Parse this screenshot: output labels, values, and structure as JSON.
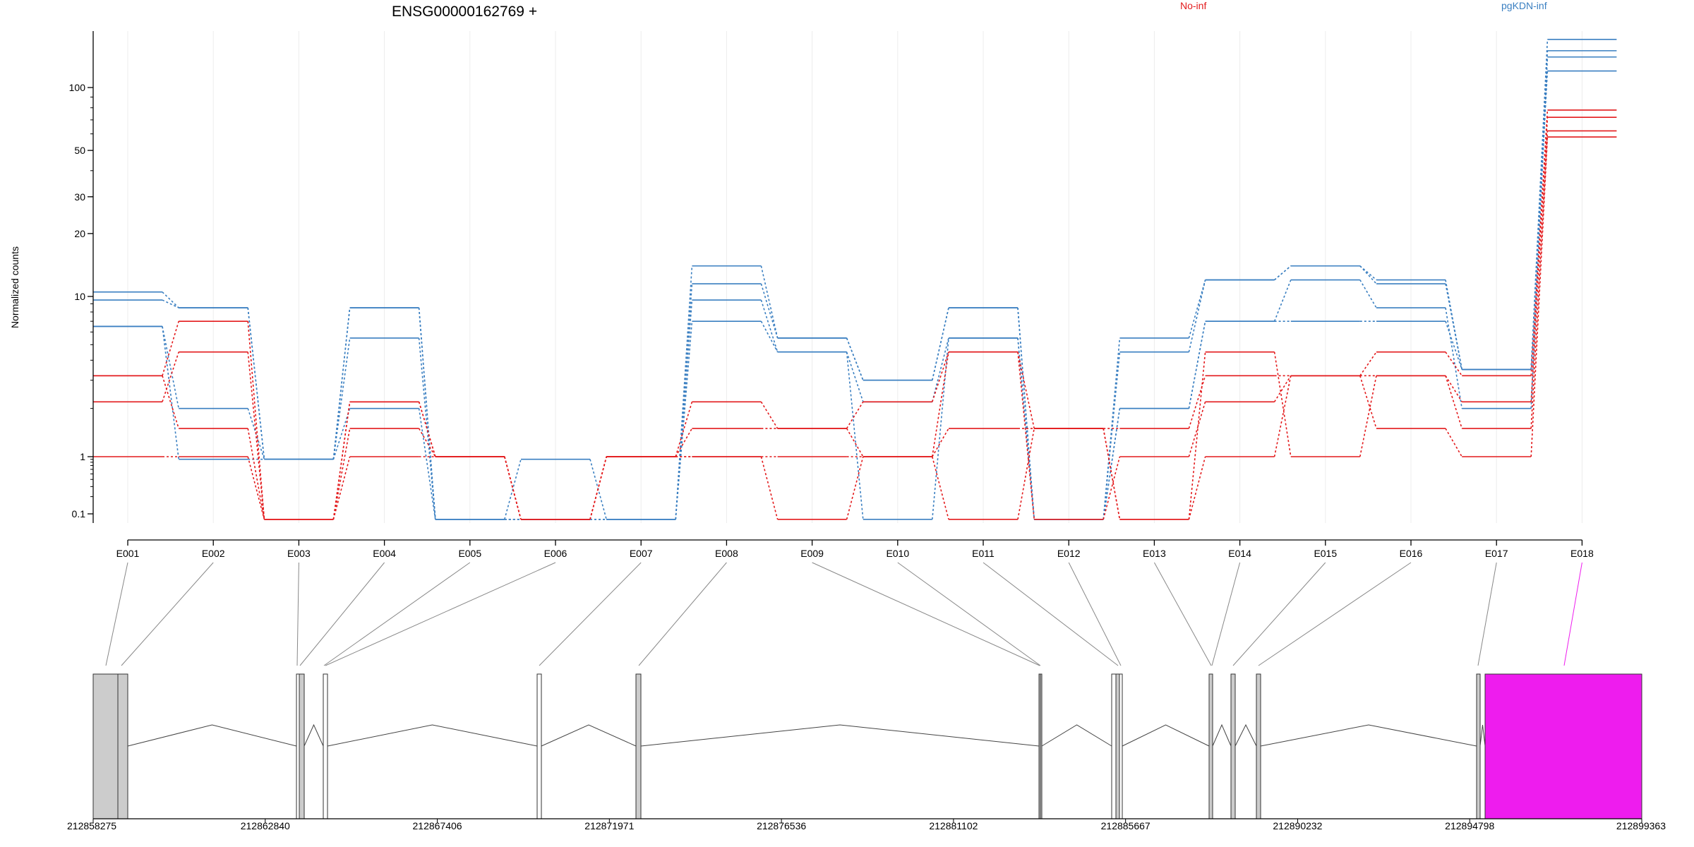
{
  "chart_data": {
    "type": "line",
    "title": "ENSG00000162769 +",
    "ylabel": "Normalized counts",
    "yscale": "log",
    "ytick_labels": [
      "0.1",
      "1",
      "10",
      "20",
      "30",
      "50",
      "100"
    ],
    "categories": [
      "E001",
      "E002",
      "E003",
      "E004",
      "E005",
      "E006",
      "E007",
      "E008",
      "E009",
      "E010",
      "E011",
      "E012",
      "E013",
      "E014",
      "E015",
      "E016",
      "E017",
      "E018"
    ],
    "legend": [
      {
        "label": "No-inf",
        "color": "#e31a1c"
      },
      {
        "label": "pgKDN-inf",
        "color": "#3a7fc1"
      }
    ],
    "series": [
      {
        "group": "pgKDN-inf",
        "color": "#3a7fc1",
        "values": [
          10.5,
          8.5,
          0.9,
          8.5,
          0.08,
          0.9,
          0.08,
          14,
          5.5,
          3,
          8.5,
          0.08,
          5.5,
          12,
          14,
          12,
          3.5,
          170
        ]
      },
      {
        "group": "pgKDN-inf",
        "color": "#3a7fc1",
        "values": [
          9.5,
          8.5,
          0.9,
          8.5,
          0.08,
          0.08,
          0.08,
          11.5,
          5.5,
          3,
          8.5,
          0.08,
          4.5,
          12,
          14,
          11.5,
          3.5,
          150
        ]
      },
      {
        "group": "pgKDN-inf",
        "color": "#3a7fc1",
        "values": [
          6.5,
          2,
          0.9,
          5.5,
          0.08,
          0.08,
          0.08,
          9.5,
          4.5,
          2.2,
          5.5,
          0.08,
          2,
          7,
          12,
          8.5,
          2,
          140
        ]
      },
      {
        "group": "pgKDN-inf",
        "color": "#3a7fc1",
        "values": [
          6.5,
          0.9,
          0.9,
          2,
          0.08,
          0.08,
          0.08,
          7,
          4.5,
          0.08,
          5.5,
          0.08,
          2,
          7,
          7,
          7,
          3.5,
          120
        ]
      },
      {
        "group": "No-inf",
        "color": "#e31a1c",
        "values": [
          3.2,
          7,
          0.08,
          2.2,
          1,
          0.08,
          1,
          2.2,
          1.5,
          2.2,
          4.5,
          1.5,
          1.5,
          3.2,
          3.2,
          4.5,
          3.2,
          78
        ]
      },
      {
        "group": "No-inf",
        "color": "#e31a1c",
        "values": [
          2.2,
          4.5,
          0.08,
          2.2,
          1,
          0.08,
          1,
          1.5,
          1.5,
          1,
          4.5,
          0.08,
          1,
          2.2,
          3.2,
          3.2,
          2.2,
          72
        ]
      },
      {
        "group": "No-inf",
        "color": "#e31a1c",
        "values": [
          3.2,
          1.5,
          0.08,
          1.5,
          1,
          0.08,
          1,
          1,
          1,
          1,
          1.5,
          1.5,
          0.08,
          4.5,
          1,
          3.2,
          1.5,
          62
        ]
      },
      {
        "group": "No-inf",
        "color": "#e31a1c",
        "values": [
          1,
          1,
          0.08,
          1,
          1,
          0.08,
          1,
          1,
          0.08,
          1,
          0.08,
          1.5,
          0.08,
          1,
          3.2,
          1.5,
          1,
          58
        ]
      }
    ],
    "genomic_axis_labels": [
      "212858275",
      "212862840",
      "212867406",
      "212871971",
      "212876536",
      "212881102",
      "212885667",
      "212890232",
      "212894798",
      "212899363"
    ],
    "highlight_color": "#ee1cee",
    "exon_fill": "#cccccc",
    "grid": false
  }
}
